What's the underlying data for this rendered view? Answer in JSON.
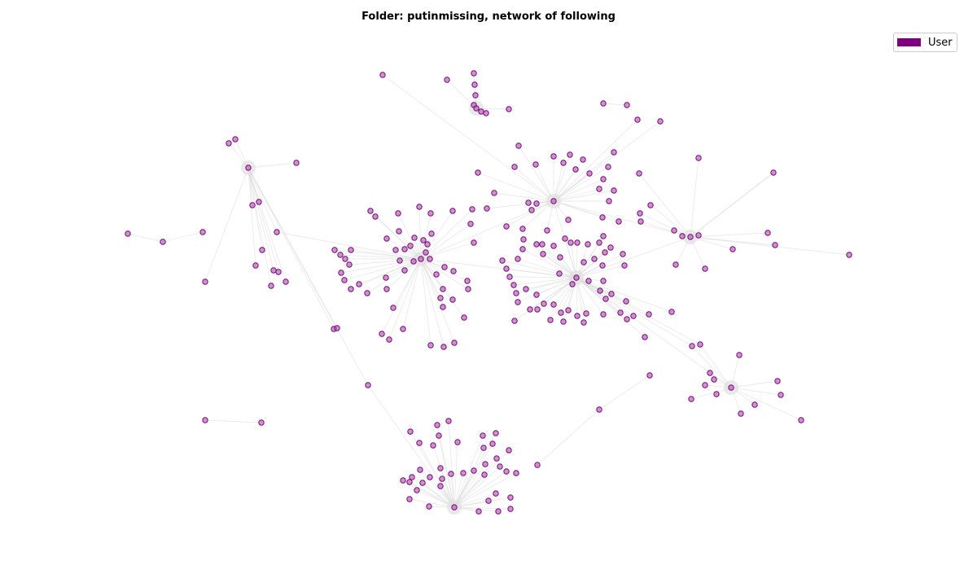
{
  "title": "Folder: putinmissing, network of following",
  "legend": {
    "label": "User",
    "color": "#800080"
  },
  "node_fill": "#b45ab4",
  "edge_color": "#d9d9d9"
}
